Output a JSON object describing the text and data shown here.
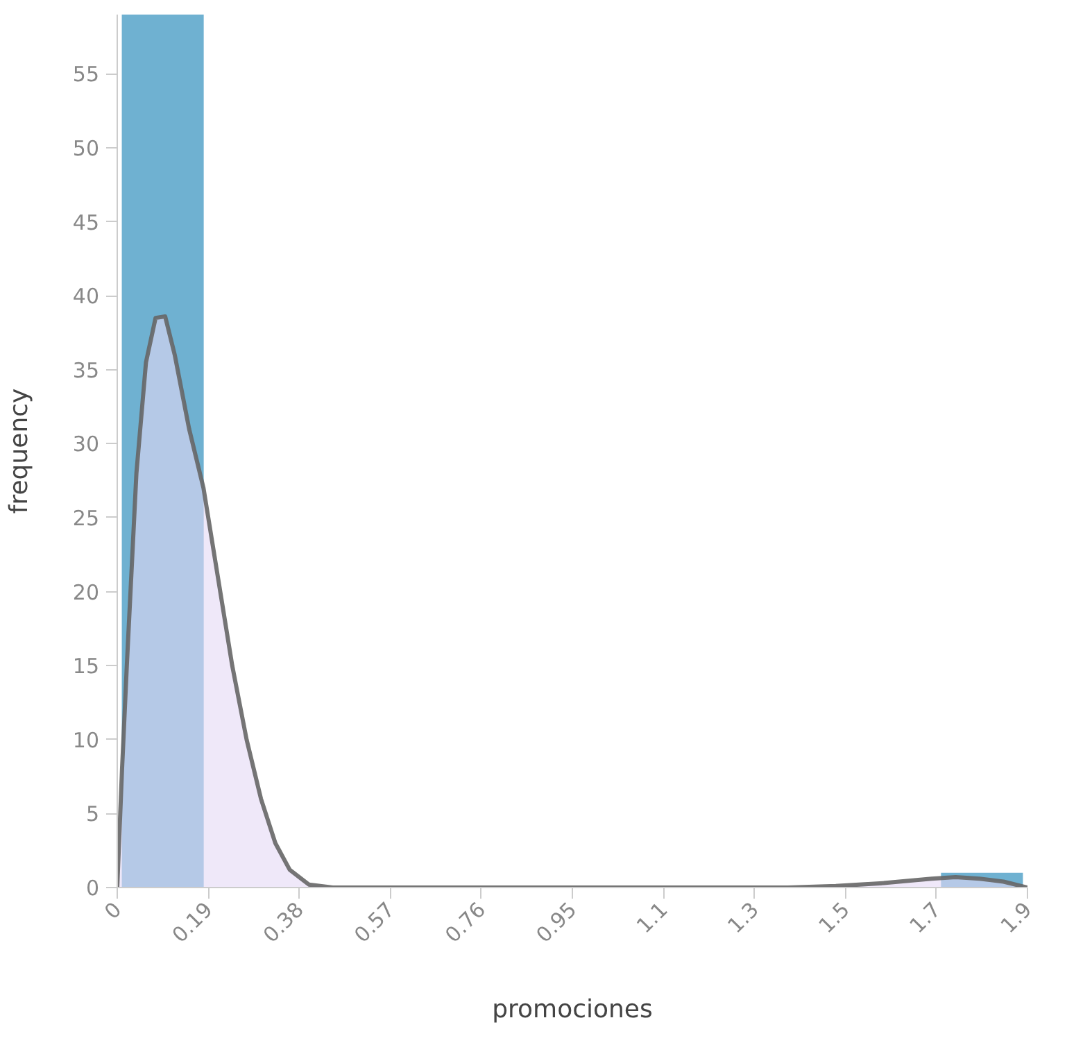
{
  "chart_data": {
    "type": "histogram",
    "xlabel": "promociones",
    "ylabel": "frequency",
    "bins": [
      0,
      0.19,
      0.38,
      0.57,
      0.76,
      0.95,
      1.14,
      1.33,
      1.52,
      1.71,
      1.9
    ],
    "values": [
      59,
      0,
      0,
      0,
      0,
      0,
      0,
      0,
      0,
      1
    ],
    "color": "#6fb1d1",
    "series": [
      {
        "type": "area",
        "color": "#e4d9f5",
        "x": [
          0,
          0.01,
          0.02,
          0.04,
          0.06,
          0.08,
          0.1,
          0.12,
          0.15,
          0.18,
          0.21,
          0.24,
          0.27,
          0.3,
          0.33,
          0.36,
          0.4,
          0.45,
          0.6,
          0.9,
          1.2,
          1.4,
          1.5,
          1.6,
          1.7,
          1.75,
          1.8,
          1.85,
          1.9
        ],
        "values": [
          0,
          8,
          15,
          28,
          35.5,
          38.5,
          38.6,
          36,
          31,
          27,
          21,
          15,
          10,
          6,
          3,
          1.2,
          0.2,
          0,
          0,
          0,
          0,
          0,
          0.1,
          0.3,
          0.6,
          0.7,
          0.6,
          0.4,
          0
        ]
      }
    ],
    "xlim": [
      0,
      1.9
    ],
    "ylim": [
      0,
      59
    ],
    "xticks": [
      0,
      0.19,
      0.38,
      0.57,
      0.76,
      0.95,
      {
        "value": 1.14,
        "label": "1.1"
      },
      {
        "value": 1.33,
        "label": "1.3"
      },
      {
        "value": 1.52,
        "label": "1.5"
      },
      {
        "value": 1.71,
        "label": "1.7"
      },
      {
        "value": 1.9,
        "label": "1.9"
      }
    ],
    "yticks": [
      0,
      5,
      10,
      15,
      20,
      25,
      30,
      35,
      40,
      45,
      50,
      55
    ],
    "grid": false
  }
}
